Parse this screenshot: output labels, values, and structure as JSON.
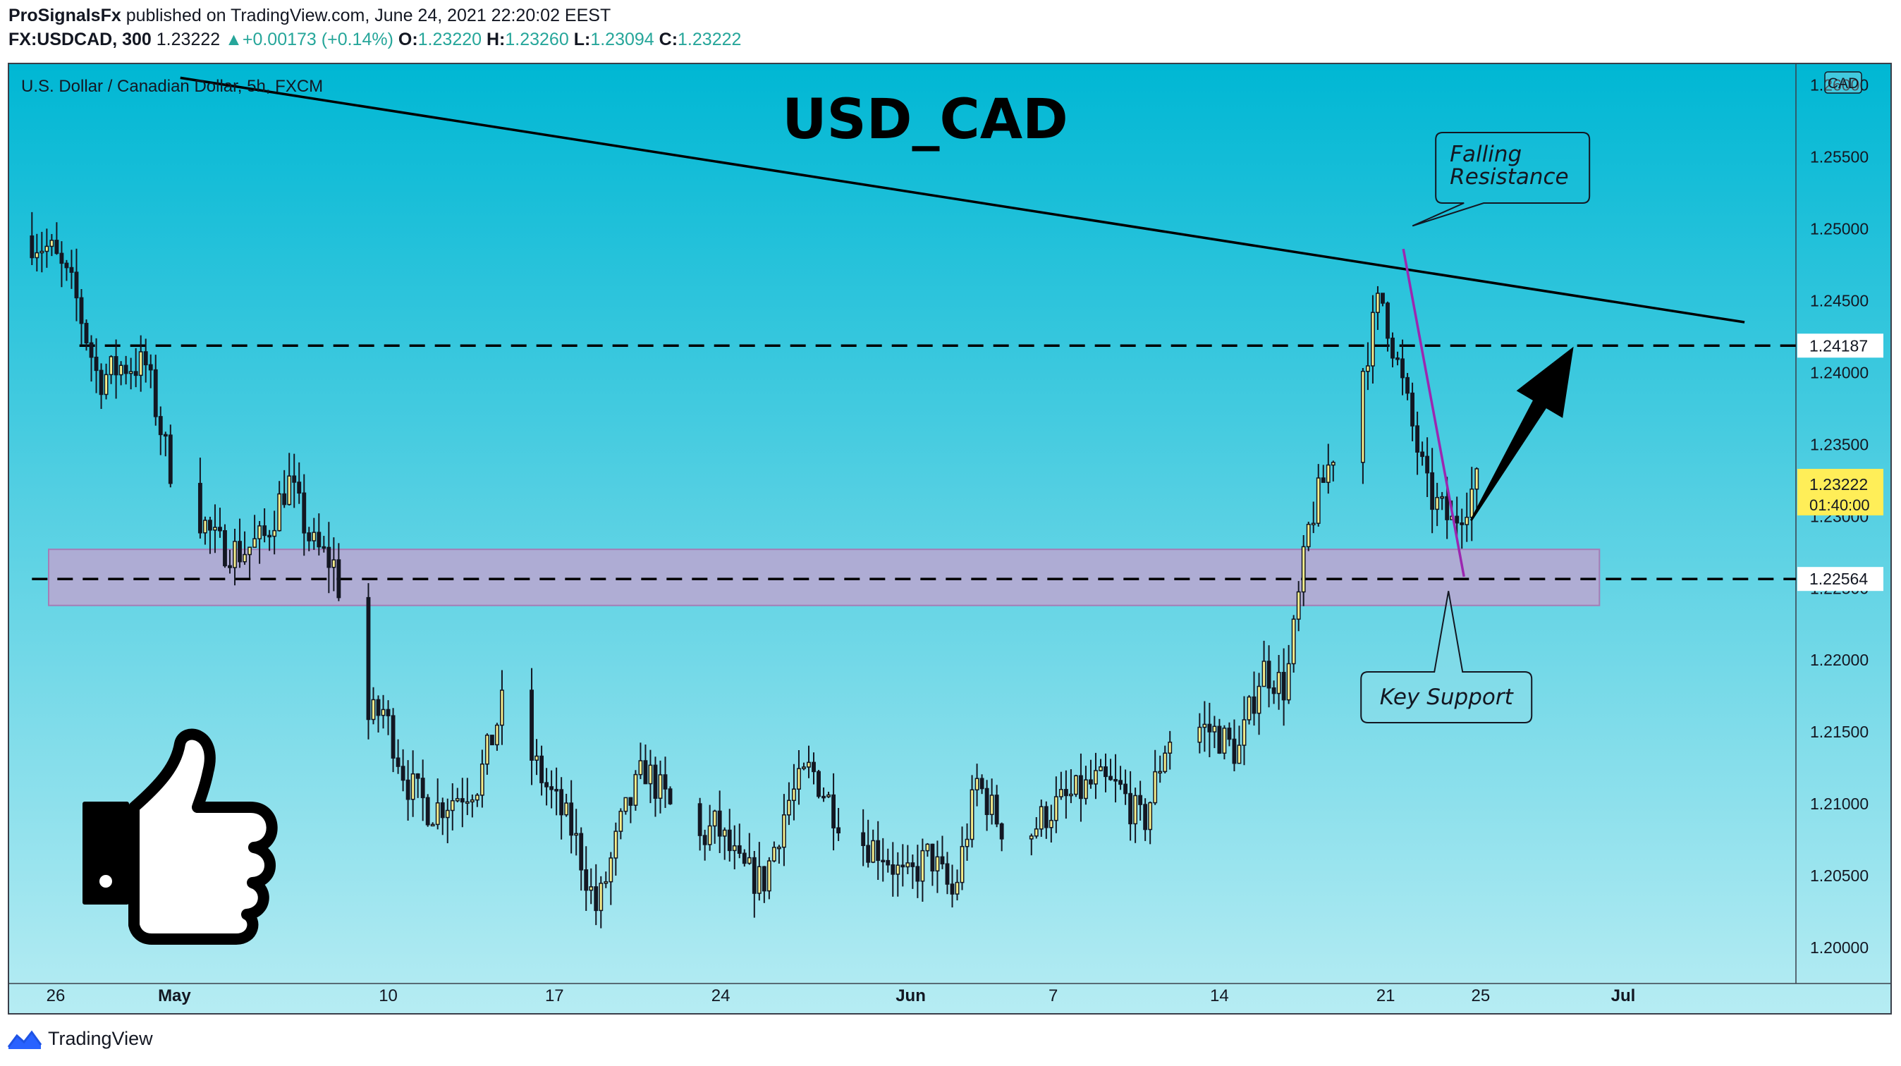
{
  "header": {
    "publisher": "ProSignalsFx",
    "published_text": "published on TradingView.com, June 24, 2021 22:20:02 EEST",
    "symbol": "FX:USDCAD, 300",
    "last": "1.23222",
    "change": "+0.00173 (+0.14%)",
    "o_label": "O:",
    "o_value": "1.23220",
    "h_label": "H:",
    "h_value": "1.23260",
    "l_label": "L:",
    "l_value": "1.23094",
    "c_label": "C:",
    "c_value": "1.23222"
  },
  "footer": {
    "brand": "TradingView"
  },
  "colors": {
    "bg_top": "#00b7d4",
    "bg_bottom": "#b6ecf3",
    "candle_up": "#f7ef8c",
    "candle_down": "#131722",
    "zone": "#c4a2cf",
    "price_tag": "#ffee58",
    "trendline_short": "#9c27b0"
  },
  "chart_data": {
    "type": "candlestick",
    "title": "USD_CAD",
    "subtitle": "U.S. Dollar / Canadian Dollar, 5h, FXCM",
    "currency_badge": "CAD",
    "ylim": [
      1.1975,
      1.2615
    ],
    "y_ticks": [
      {
        "value": 1.26,
        "label": "1.26000"
      },
      {
        "value": 1.255,
        "label": "1.25500"
      },
      {
        "value": 1.25,
        "label": "1.25000"
      },
      {
        "value": 1.245,
        "label": "1.24500"
      },
      {
        "value": 1.24,
        "label": "1.24000"
      },
      {
        "value": 1.235,
        "label": "1.23500"
      },
      {
        "value": 1.23,
        "label": "1.23000"
      },
      {
        "value": 1.225,
        "label": "1.22500"
      },
      {
        "value": 1.22,
        "label": "1.22000"
      },
      {
        "value": 1.215,
        "label": "1.21500"
      },
      {
        "value": 1.21,
        "label": "1.21000"
      },
      {
        "value": 1.205,
        "label": "1.20500"
      },
      {
        "value": 1.2,
        "label": "1.20000"
      }
    ],
    "x_ticks": [
      {
        "date": "2021-04-26",
        "label": "26",
        "bold": false
      },
      {
        "date": "2021-05-01",
        "label": "May",
        "bold": true
      },
      {
        "date": "2021-05-10",
        "label": "10",
        "bold": false
      },
      {
        "date": "2021-05-17",
        "label": "17",
        "bold": false
      },
      {
        "date": "2021-05-24",
        "label": "24",
        "bold": false
      },
      {
        "date": "2021-06-01",
        "label": "Jun",
        "bold": true
      },
      {
        "date": "2021-06-07",
        "label": "7",
        "bold": false
      },
      {
        "date": "2021-06-14",
        "label": "14",
        "bold": false
      },
      {
        "date": "2021-06-21",
        "label": "21",
        "bold": false
      },
      {
        "date": "2021-06-25",
        "label": "25",
        "bold": false
      },
      {
        "date": "2021-07-01",
        "label": "Jul",
        "bold": true
      }
    ],
    "path_points": [
      [
        "2021-04-25",
        1.2495
      ],
      [
        "2021-04-26",
        1.2485
      ],
      [
        "2021-04-27",
        1.2455
      ],
      [
        "2021-04-28",
        1.2395
      ],
      [
        "2021-04-29",
        1.2405
      ],
      [
        "2021-04-30",
        1.2405
      ],
      [
        "2021-05-01",
        1.2335
      ],
      [
        "2021-05-03",
        1.228
      ],
      [
        "2021-05-04",
        1.2275
      ],
      [
        "2021-05-05",
        1.2285
      ],
      [
        "2021-05-06",
        1.2325
      ],
      [
        "2021-05-07",
        1.228
      ],
      [
        "2021-05-08",
        1.2265
      ],
      [
        "2021-05-09",
        1.2155
      ],
      [
        "2021-05-10",
        1.2165
      ],
      [
        "2021-05-11",
        1.2115
      ],
      [
        "2021-05-12",
        1.2095
      ],
      [
        "2021-05-13",
        1.2105
      ],
      [
        "2021-05-14",
        1.2115
      ],
      [
        "2021-05-15",
        1.2168
      ],
      [
        "2021-05-16",
        1.214
      ],
      [
        "2021-05-17",
        1.2108
      ],
      [
        "2021-05-18",
        1.208
      ],
      [
        "2021-05-19",
        1.2025
      ],
      [
        "2021-05-20",
        1.2085
      ],
      [
        "2021-05-21",
        1.2125
      ],
      [
        "2021-05-22",
        1.21
      ],
      [
        "2021-05-23",
        1.207
      ],
      [
        "2021-05-24",
        1.2085
      ],
      [
        "2021-05-25",
        1.2055
      ],
      [
        "2021-05-26",
        1.2045
      ],
      [
        "2021-05-27",
        1.21
      ],
      [
        "2021-05-28",
        1.2125
      ],
      [
        "2021-05-29",
        1.2095
      ],
      [
        "2021-05-30",
        1.2075
      ],
      [
        "2021-05-31",
        1.2068
      ],
      [
        "2021-06-01",
        1.2045
      ],
      [
        "2021-06-02",
        1.2065
      ],
      [
        "2021-06-03",
        1.2035
      ],
      [
        "2021-06-04",
        1.2115
      ],
      [
        "2021-06-05",
        1.2085
      ],
      [
        "2021-06-06",
        1.2075
      ],
      [
        "2021-06-07",
        1.2095
      ],
      [
        "2021-06-08",
        1.2105
      ],
      [
        "2021-06-09",
        1.2115
      ],
      [
        "2021-06-10",
        1.211
      ],
      [
        "2021-06-11",
        1.2085
      ],
      [
        "2021-06-12",
        1.2145
      ],
      [
        "2021-06-13",
        1.2155
      ],
      [
        "2021-06-14",
        1.215
      ],
      [
        "2021-06-15",
        1.2135
      ],
      [
        "2021-06-16",
        1.2195
      ],
      [
        "2021-06-17",
        1.218
      ],
      [
        "2021-06-18",
        1.2295
      ],
      [
        "2021-06-19",
        1.2345
      ],
      [
        "2021-06-20",
        1.2385
      ],
      [
        "2021-06-21",
        1.2455
      ],
      [
        "2021-06-22",
        1.2385
      ],
      [
        "2021-06-23",
        1.2315
      ],
      [
        "2021-06-24",
        1.2295
      ],
      [
        "2021-06-25",
        1.23222
      ]
    ],
    "zone": {
      "name": "Key Support zone",
      "from": 1.2238,
      "to": 1.2277,
      "x_start": "2021-04-26",
      "x_end": "2021-06-30"
    },
    "levels": [
      {
        "value": 1.24187,
        "label": "1.24187",
        "x_start": "2021-04-27"
      },
      {
        "value": 1.22564,
        "label": "1.22564",
        "x_start": "2021-04-25"
      }
    ],
    "falling_resistance": {
      "from": [
        "2021-04-30",
        1.2605
      ],
      "to": [
        "2021-07-07",
        1.2435
      ]
    },
    "short_trendline": {
      "from": [
        "2021-06-21",
        1.2486
      ],
      "to": [
        "2021-06-24",
        1.2258
      ]
    },
    "arrow": {
      "from": [
        "2021-06-24",
        1.2297
      ],
      "to": [
        "2021-06-29",
        1.2418
      ]
    },
    "annotations": [
      {
        "text_lines": [
          "Falling",
          "Resistance"
        ],
        "anchor": [
          "2021-06-21",
          1.2502
        ]
      },
      {
        "text_lines": [
          "Key Support"
        ],
        "anchor": [
          "2021-06-24",
          1.2248
        ]
      }
    ],
    "last_price": {
      "value": 1.23222,
      "label": "1.23222",
      "countdown": "01:40:00"
    }
  }
}
